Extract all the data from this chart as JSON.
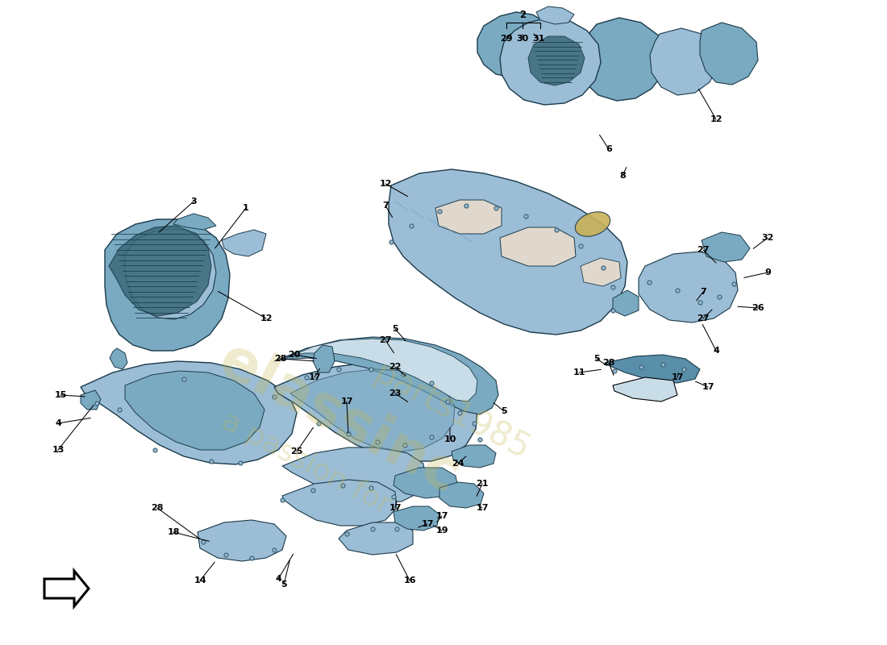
{
  "bg_color": "#ffffff",
  "part_color": "#9bbdd6",
  "part_color_mid": "#7aaac2",
  "part_color_dark": "#5a8faa",
  "part_color_grille": "#4a7a94",
  "line_color": "#1a3a4a",
  "watermark1": "elassinc",
  "watermark2": "a passion for",
  "watermark3": "parts1985",
  "wm_color": "#c8b850",
  "wm_alpha": 0.28,
  "figsize": [
    11.0,
    8.0
  ],
  "dpi": 100
}
